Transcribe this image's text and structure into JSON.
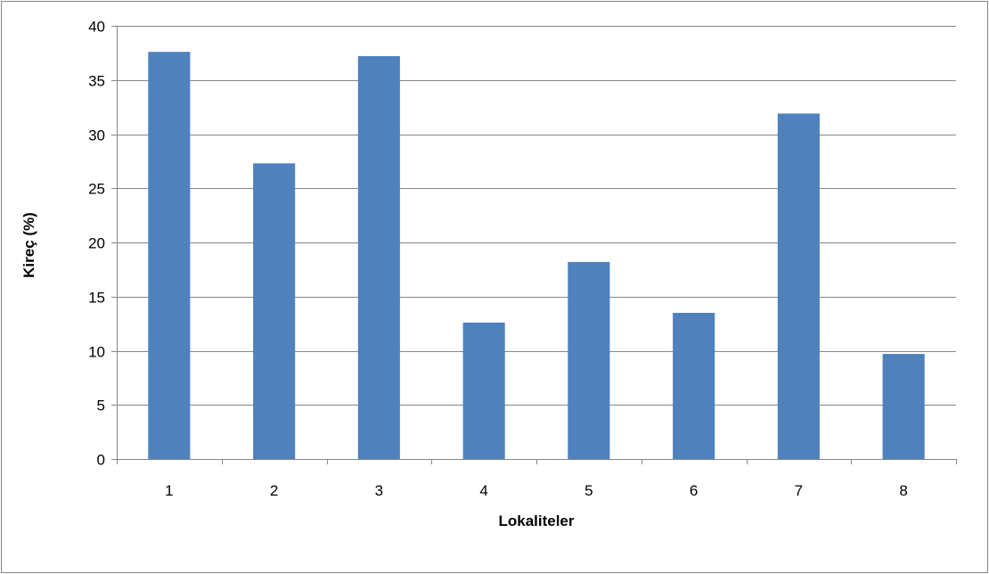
{
  "chart_data": {
    "type": "bar",
    "categories": [
      "1",
      "2",
      "3",
      "4",
      "5",
      "6",
      "7",
      "8"
    ],
    "values": [
      37.6,
      27.3,
      37.2,
      12.6,
      18.2,
      13.5,
      31.9,
      9.7
    ],
    "ylabel": "Kireç (%)",
    "xlabel": "Lokaliteler",
    "ylim": [
      0,
      40
    ],
    "yticks": [
      "0",
      "5",
      "10",
      "15",
      "20",
      "25",
      "30",
      "35",
      "40"
    ],
    "grid": true,
    "legend": "none",
    "colors": {
      "bar": "#4f81bd",
      "grid": "#868686",
      "axis": "#868686",
      "frame": "#868686"
    }
  }
}
